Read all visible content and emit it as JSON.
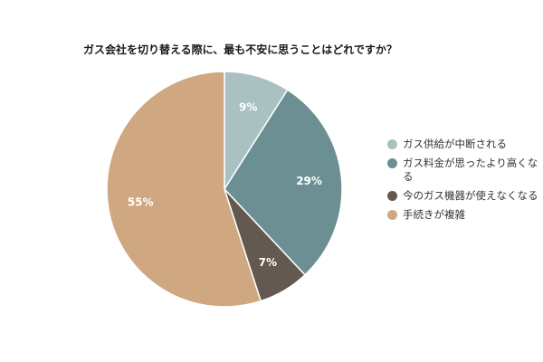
{
  "chart_data": {
    "type": "pie",
    "title": "ガス会社を切り替える際に、最も不安に思うことはどれですか？",
    "slices": [
      {
        "name": "ガス供給が中断される",
        "value": 9,
        "label": "9%",
        "color": "#a9c1c1"
      },
      {
        "name": "ガス料金が思ったより高くなる",
        "value": 29,
        "label": "29%",
        "color": "#6b8f93"
      },
      {
        "name": "今のガス機器が使えなくなる",
        "value": 7,
        "label": "7%",
        "color": "#645951"
      },
      {
        "name": "手続きが複雑",
        "value": 55,
        "label": "55%",
        "color": "#cfa882"
      }
    ],
    "start_angle": "12 o'clock",
    "direction": "clockwise",
    "legend_placement": "right"
  },
  "legend_labels": {
    "item0": "ガス供給が中断される",
    "item1": "ガス料金が思ったより高くなる",
    "item2": "今のガス機器が使えなくなる",
    "item3": "手続きが複雑"
  }
}
